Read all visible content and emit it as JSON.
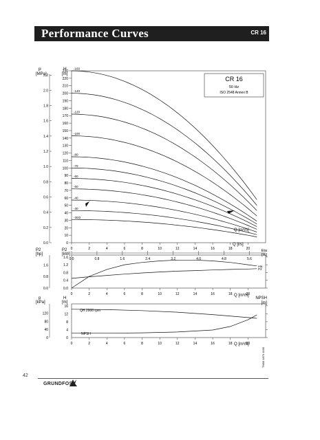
{
  "header": {
    "title": "Performance Curves",
    "model": "CR 16"
  },
  "page_number": "42",
  "brand": "GRUNDFOS",
  "doc_code": "TM00 1873 4100",
  "chart_data": [
    {
      "type": "line",
      "legend_box": {
        "title": "CR 16",
        "freq": "50 Hz",
        "standard": "ISO 2548 Annex B"
      },
      "left_axis": {
        "label_top": "p",
        "label_unit": "[MPa]",
        "ticks": [
          "0.0",
          "0.2",
          "0.4",
          "0.6",
          "0.8",
          "1.0",
          "1.2",
          "1.4",
          "1.6",
          "1.8",
          "2.0",
          "2.2"
        ]
      },
      "head_axis": {
        "label_top": "H",
        "label_unit": "[m]",
        "ticks": [
          "0",
          "10",
          "20",
          "30",
          "40",
          "50",
          "60",
          "70",
          "80",
          "90",
          "100",
          "110",
          "120",
          "130",
          "140",
          "150",
          "160",
          "170",
          "180",
          "190",
          "200",
          "210",
          "220",
          "230"
        ],
        "ylim": [
          0,
          230
        ]
      },
      "x_axis": {
        "label": "Q [m³/h]",
        "ticks": [
          "0",
          "2",
          "4",
          "6",
          "8",
          "10",
          "12",
          "14",
          "16",
          "18",
          "20"
        ],
        "xlim": [
          0,
          22
        ]
      },
      "x2_axis": {
        "label": "Q [l/s]",
        "ticks": [
          "0.0",
          "0.8",
          "1.6",
          "2.4",
          "3.2",
          "4.0",
          "4.8",
          "5.6"
        ]
      },
      "series": [
        {
          "name": "-160",
          "shutoff": 230
        },
        {
          "name": "-140",
          "shutoff": 200
        },
        {
          "name": "-120",
          "shutoff": 172
        },
        {
          "name": "-100",
          "shutoff": 143
        },
        {
          "name": "-80",
          "shutoff": 115
        },
        {
          "name": "-70",
          "shutoff": 100
        },
        {
          "name": "-60",
          "shutoff": 86
        },
        {
          "name": "-50",
          "shutoff": 72
        },
        {
          "name": "-40",
          "shutoff": 57
        },
        {
          "name": "-30",
          "shutoff": 43
        },
        {
          "name": "-30/2",
          "shutoff": 31
        }
      ]
    },
    {
      "type": "line",
      "p2_axis": {
        "label_hp": "P2",
        "unit_hp": "[hp]",
        "ticks_hp": [
          "0.0",
          "0.8",
          "1.6"
        ],
        "label_kw": "P2",
        "unit_kw": "[kW]",
        "ticks_kw": [
          "0.0",
          "0.4",
          "0.8",
          "1.2",
          "1.6"
        ]
      },
      "eff_axis": {
        "label": "Eta",
        "unit": "[%]",
        "ticks": [
          "0",
          "20",
          "40",
          "60",
          "80"
        ]
      },
      "x_axis": {
        "label": "Q [m³/h]",
        "ticks": [
          "0",
          "2",
          "4",
          "6",
          "8",
          "10",
          "12",
          "14",
          "16",
          "18",
          "20"
        ]
      },
      "series": [
        {
          "name": "eta",
          "x": [
            0,
            2,
            4,
            6,
            8,
            10,
            12,
            14,
            16,
            18,
            20,
            21
          ],
          "y": [
            0,
            30,
            48,
            60,
            66,
            70,
            72,
            72,
            70,
            66,
            60,
            57
          ]
        },
        {
          "name": "P2",
          "x": [
            0,
            2,
            4,
            6,
            8,
            10,
            12,
            14,
            16,
            18,
            20,
            21
          ],
          "y": [
            0.5,
            0.58,
            0.65,
            0.72,
            0.78,
            0.83,
            0.87,
            0.9,
            0.93,
            0.96,
            0.98,
            1.0
          ]
        }
      ]
    },
    {
      "type": "line",
      "p_axis": {
        "label": "p",
        "unit": "[kPa]",
        "ticks": [
          "0",
          "40",
          "80",
          "120"
        ]
      },
      "h_axis": {
        "label": "H",
        "unit": "[m]",
        "ticks": [
          "0",
          "4",
          "8",
          "12",
          "16"
        ]
      },
      "npsh_axis": {
        "label": "NPSH",
        "unit": "[m]",
        "ticks": [
          "0",
          "2",
          "4",
          "6",
          "8"
        ]
      },
      "x_axis": {
        "label": "Q [m³/h]",
        "ticks": [
          "0",
          "2",
          "4",
          "6",
          "8",
          "10",
          "12",
          "14",
          "16",
          "18",
          "20"
        ]
      },
      "annotation": "QH 2900 rpm",
      "series": [
        {
          "name": "QH 2900 rpm",
          "x": [
            0,
            4,
            8,
            12,
            16,
            20,
            21
          ],
          "y": [
            14.3,
            14.1,
            13.6,
            12.8,
            11.6,
            10.1,
            9.7
          ]
        },
        {
          "name": "NPSH",
          "x": [
            0,
            4,
            8,
            12,
            16,
            18,
            20,
            21
          ],
          "y": [
            1.1,
            1.1,
            1.2,
            1.4,
            1.9,
            2.8,
            4.5,
            5.7
          ]
        }
      ]
    }
  ]
}
